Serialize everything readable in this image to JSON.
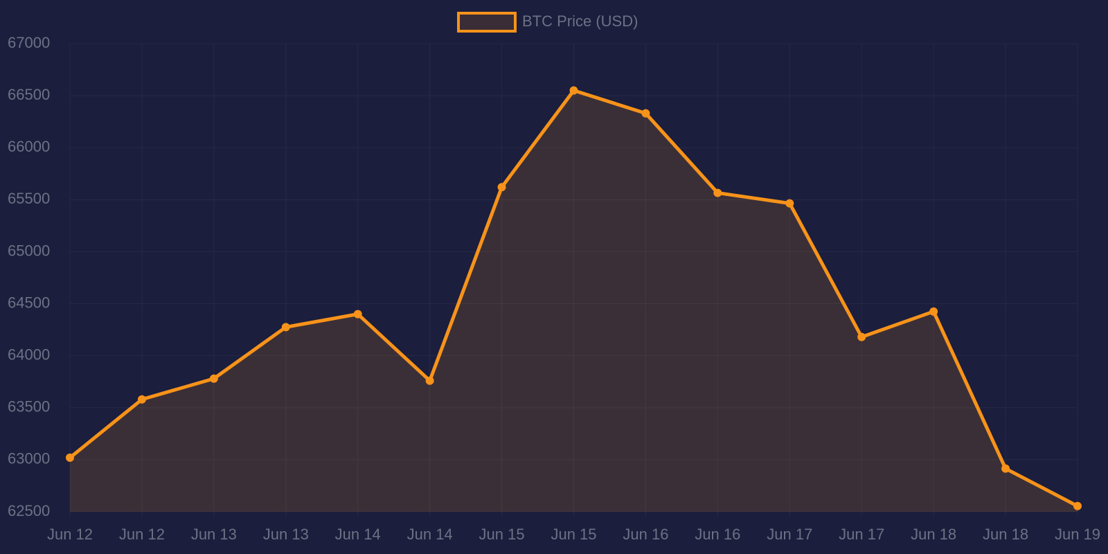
{
  "chart_data": {
    "type": "line",
    "categories": [
      "Jun 12",
      "Jun 12",
      "Jun 13",
      "Jun 13",
      "Jun 14",
      "Jun 14",
      "Jun 15",
      "Jun 15",
      "Jun 16",
      "Jun 16",
      "Jun 17",
      "Jun 17",
      "Jun 18",
      "Jun 18",
      "Jun 19"
    ],
    "series": [
      {
        "name": "BTC Price (USD)",
        "color": "#f7931a",
        "values": [
          63020,
          63580,
          63780,
          64275,
          64400,
          63760,
          65620,
          66550,
          66330,
          65565,
          65465,
          64180,
          64425,
          62915,
          62555
        ]
      }
    ],
    "fill": true,
    "ylim": [
      62500,
      67000
    ],
    "yticks": [
      62500,
      63000,
      63500,
      64000,
      64500,
      65000,
      65500,
      66000,
      66500,
      67000
    ],
    "grid": true,
    "legend": "top"
  }
}
